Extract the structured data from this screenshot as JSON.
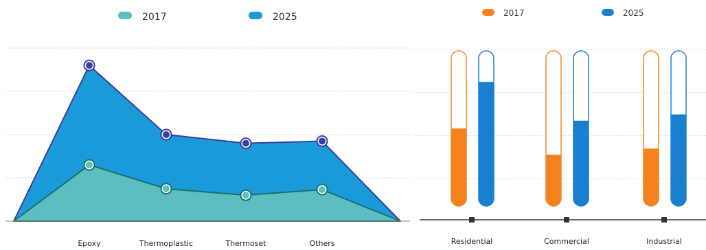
{
  "chart_data": [
    {
      "type": "area",
      "categories": [
        "Epoxy",
        "Thermoplastic",
        "Thermoset",
        "Others"
      ],
      "series": [
        {
          "name": "2017",
          "values": [
            1.3,
            0.75,
            0.6,
            0.73
          ]
        },
        {
          "name": "2025",
          "values": [
            3.6,
            2.0,
            1.8,
            1.85
          ]
        }
      ],
      "ylim": [
        0,
        4
      ],
      "grid": true,
      "legend": "top",
      "colors": {
        "2017": "#5bbfbf",
        "2025": "#1a9ad8",
        "line_2017": "#1b6f6f",
        "line_2025": "#3a3fa0"
      }
    },
    {
      "type": "bar",
      "categories": [
        "Residential",
        "Commercial",
        "Industrial"
      ],
      "series": [
        {
          "name": "2017",
          "values": [
            0.5,
            0.33,
            0.37
          ]
        },
        {
          "name": "2025",
          "values": [
            0.8,
            0.55,
            0.59
          ]
        }
      ],
      "ylim": [
        0,
        1
      ],
      "grid": true,
      "legend": "top",
      "colors": {
        "2017": "#f5821f",
        "2025": "#1a7fcf"
      }
    }
  ]
}
